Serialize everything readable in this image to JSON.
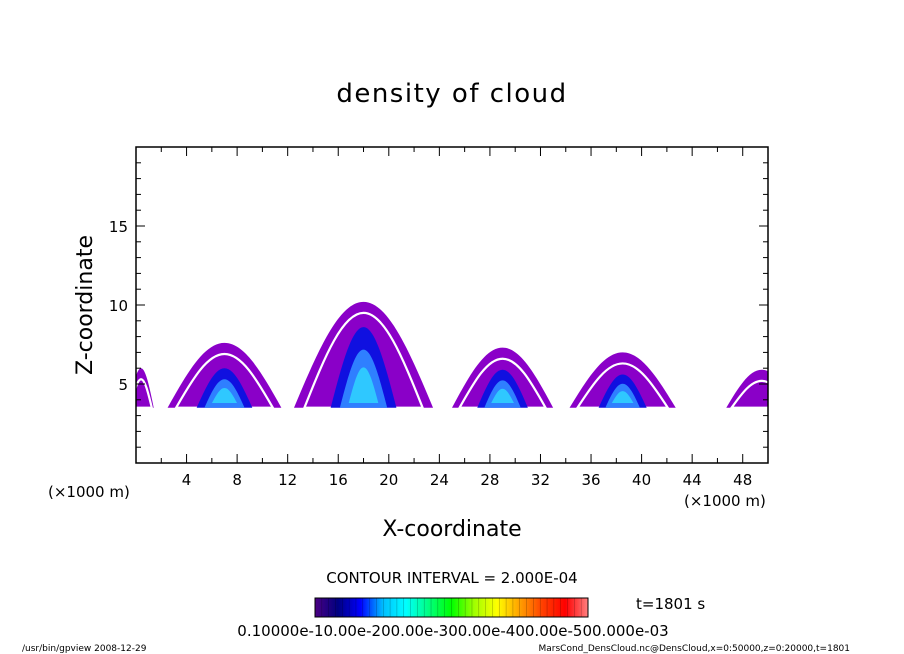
{
  "chart_data": {
    "type": "heatmap",
    "title": "density of cloud",
    "xlabel": "X-coordinate",
    "ylabel": "Z-coordinate",
    "x_unit_label": "(×1000 m)",
    "y_unit_label": "(×1000 m)",
    "xlim": [
      0,
      50
    ],
    "ylim": [
      0,
      20
    ],
    "x_ticks": [
      4,
      8,
      12,
      16,
      20,
      24,
      28,
      32,
      36,
      40,
      44,
      48
    ],
    "y_ticks": [
      5,
      10,
      15
    ],
    "contour_interval_text": "CONTOUR INTERVAL = 2.000E-04",
    "time_label": "t=1801 s",
    "colorbar_labels_text": "0.10000e-10.00e-200.00e-300.00e-400.00e-500.000e-03",
    "colorbar_stops": [
      "#4b0082",
      "#000080",
      "#0000ff",
      "#00bfff",
      "#00ffff",
      "#00ff80",
      "#00ff00",
      "#a0ff00",
      "#ffff00",
      "#ffa000",
      "#ff4000",
      "#ff0000",
      "#ff8080"
    ],
    "clouds": [
      {
        "center_x": 0.4,
        "base_z": 3.5,
        "top_z": 6.0,
        "half_width": 1.0,
        "core_top_z": 0,
        "core_half_width": 0
      },
      {
        "center_x": 7.0,
        "base_z": 3.5,
        "top_z": 7.6,
        "half_width": 4.5,
        "core_top_z": 6.0,
        "core_half_width": 2.2
      },
      {
        "center_x": 18.0,
        "base_z": 3.5,
        "top_z": 10.2,
        "half_width": 5.5,
        "core_top_z": 8.6,
        "core_half_width": 2.6
      },
      {
        "center_x": 29.0,
        "base_z": 3.5,
        "top_z": 7.3,
        "half_width": 4.0,
        "core_top_z": 5.9,
        "core_half_width": 2.0
      },
      {
        "center_x": 38.5,
        "base_z": 3.5,
        "top_z": 7.0,
        "half_width": 4.2,
        "core_top_z": 5.6,
        "core_half_width": 1.9
      },
      {
        "center_x": 49.5,
        "base_z": 3.5,
        "top_z": 5.9,
        "half_width": 2.8,
        "core_top_z": 0,
        "core_half_width": 0
      }
    ]
  },
  "footer": {
    "left": "/usr/bin/gpview  2008-12-29",
    "right": "MarsCond_DensCloud.nc@DensCloud,x=0:50000,z=0:20000,t=1801"
  }
}
